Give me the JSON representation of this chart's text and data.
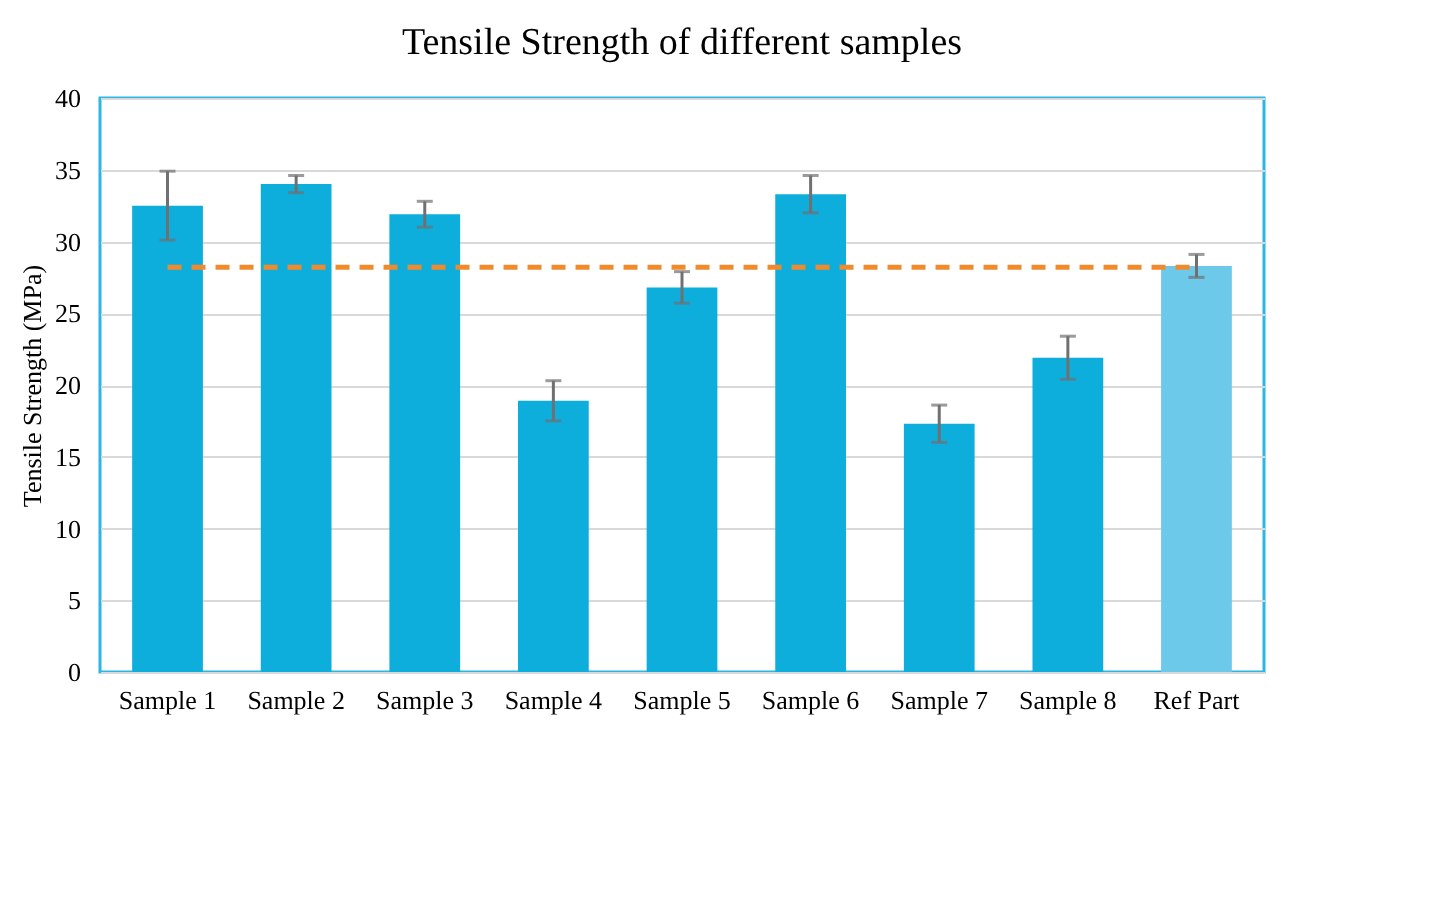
{
  "chart_data": {
    "type": "bar",
    "title": "Tensile Strength of different samples",
    "ylabel": "Tensile Strength (MPa)",
    "categories": [
      "Sample 1",
      "Sample 2",
      "Sample 3",
      "Sample 4",
      "Sample 5",
      "Sample 6",
      "Sample 7",
      "Sample 8",
      "Ref Part"
    ],
    "values": [
      32.5,
      34.0,
      31.9,
      18.9,
      26.8,
      33.3,
      17.3,
      21.9,
      28.3
    ],
    "errors": [
      2.4,
      0.6,
      0.9,
      1.4,
      1.1,
      1.3,
      1.3,
      1.5,
      0.8
    ],
    "colors": [
      "#0eaedc",
      "#0eaedc",
      "#0eaedc",
      "#0eaedc",
      "#0eaedc",
      "#0eaedc",
      "#0eaedc",
      "#0eaedc",
      "#6cc9e9"
    ],
    "ref_lines": [
      {
        "axis": "y",
        "value": 28.2,
        "color": "#f08a2c",
        "line_style": "dashed"
      }
    ],
    "ylim": [
      0,
      40
    ],
    "yticks": [
      0,
      5,
      10,
      15,
      20,
      25,
      30,
      35,
      40
    ],
    "grid": "y"
  }
}
